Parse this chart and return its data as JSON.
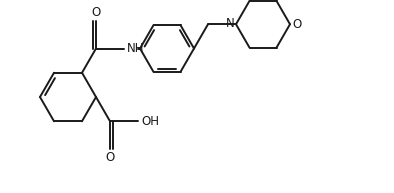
{
  "bg_color": "#ffffff",
  "line_color": "#1a1a1a",
  "line_width": 1.4,
  "font_size": 8.5,
  "figsize": [
    3.94,
    1.93
  ],
  "dpi": 100,
  "xlim": [
    0.0,
    3.94
  ],
  "ylim": [
    0.0,
    1.93
  ]
}
